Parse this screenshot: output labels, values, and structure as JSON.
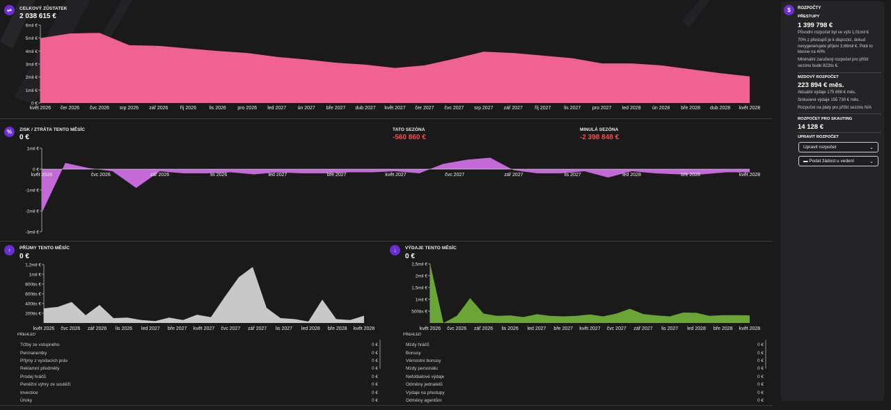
{
  "balance": {
    "title": "CELKOVÝ ZŮSTATEK",
    "value": "2 038 615 €",
    "y_ticks": [
      "6mil €",
      "5mil €",
      "4mil €",
      "3mil €",
      "2mil €",
      "1mil €",
      "0 €"
    ],
    "x_ticks": [
      "květ 2026",
      "čer 2026",
      "čvc 2026",
      "srp 2026",
      "zář 2026",
      "říj 2026",
      "lis 2026",
      "pro 2026",
      "led 2027",
      "ún 2027",
      "bře 2027",
      "dub 2027",
      "květ 2027",
      "čer 2027",
      "čvc 2027",
      "srp 2027",
      "zář 2027",
      "říj 2027",
      "lis 2027",
      "pro 2027",
      "led 2028",
      "ún 2028",
      "bře 2028",
      "dub 2028",
      "květ 2028"
    ],
    "color": "#f06292",
    "chart_data": {
      "type": "area",
      "ylim": [
        0,
        6000000
      ],
      "values": [
        5000000,
        5350000,
        5400000,
        4450000,
        4400000,
        4200000,
        4000000,
        3850000,
        3550000,
        3350000,
        3100000,
        2950000,
        2700000,
        2900000,
        3400000,
        3950000,
        3850000,
        3650000,
        3450000,
        3050000,
        3050000,
        2900000,
        2600000,
        2300000,
        2050000
      ]
    }
  },
  "profit": {
    "title": "ZISK / ZTRÁTA TENTO MĚSÍC",
    "value": "0 €",
    "season_title": "TATO SEZÓNA",
    "season_value": "-560 860 €",
    "last_title": "MINULÁ SEZÓNA",
    "last_value": "-2 398 848 €",
    "y_ticks": [
      "1mil €",
      "0 €",
      "-1mil €",
      "-2mil €",
      "-3mil €"
    ],
    "x_ticks": [
      "květ 2026",
      "čvc 2026",
      "zář 2026",
      "lis 2026",
      "led 2027",
      "bře 2027",
      "květ 2027",
      "čvc 2027",
      "zář 2027",
      "lis 2027",
      "led 2028",
      "bře 2028",
      "květ 2028"
    ],
    "color": "#c46ad8",
    "chart_data": {
      "type": "area",
      "ylim": [
        -3000000,
        1000000
      ],
      "values": [
        -2100000,
        300000,
        50000,
        -100000,
        -900000,
        -100000,
        -200000,
        -200000,
        -150000,
        -250000,
        -150000,
        -200000,
        -200000,
        -150000,
        -150000,
        -100000,
        -200000,
        250000,
        450000,
        550000,
        -50000,
        -200000,
        -200000,
        -100000,
        -400000,
        -100000,
        -200000,
        -250000,
        -250000,
        -150000,
        -150000
      ]
    }
  },
  "income": {
    "title": "PŘÍJMY TENTO MĚSÍC",
    "value": "0 €",
    "y_ticks": [
      "1,2mil €",
      "1mil €",
      "800tis €",
      "600tis €",
      "400tis €",
      "200tis €"
    ],
    "x_ticks": [
      "květ 2026",
      "čvc 2026",
      "zář 2026",
      "lis 2026",
      "led 2027",
      "bře 2027",
      "květ 2027",
      "čvc 2027",
      "zář 2027",
      "lis 2027",
      "led 2028",
      "bře 2028",
      "květ 2028"
    ],
    "color": "#c8c8c8",
    "chart_data": {
      "type": "area",
      "ylim": [
        0,
        1200000
      ],
      "values": [
        300000,
        330000,
        430000,
        160000,
        370000,
        100000,
        110000,
        60000,
        40000,
        110000,
        60000,
        170000,
        120000,
        540000,
        940000,
        1150000,
        310000,
        100000,
        80000,
        30000,
        480000,
        80000,
        60000,
        150000
      ]
    },
    "list_header": "PŘEHLED",
    "rows": [
      {
        "label": "Tržby ze vstupného",
        "value": "0 €"
      },
      {
        "label": "Permanentky",
        "value": "0 €"
      },
      {
        "label": "Příjmy z vysílacích práv",
        "value": "0 €"
      },
      {
        "label": "Reklamní předměty",
        "value": "0 €"
      },
      {
        "label": "Prodej hráčů",
        "value": "0 €"
      },
      {
        "label": "Peněžní výhry ze soutěží",
        "value": "0 €"
      },
      {
        "label": "Investice",
        "value": "0 €"
      },
      {
        "label": "Úroky",
        "value": "0 €"
      }
    ]
  },
  "expenses": {
    "title": "VÝDAJE TENTO MĚSÍC",
    "value": "0 €",
    "y_ticks": [
      "2,5mil €",
      "2mil €",
      "1,5mil €",
      "1mil €",
      "500tis €"
    ],
    "x_ticks": [
      "květ 2026",
      "čvc 2026",
      "zář 2026",
      "lis 2026",
      "led 2027",
      "bře 2027",
      "květ 2027",
      "čvc 2027",
      "zář 2027",
      "lis 2027",
      "led 2028",
      "bře 2028",
      "květ 2028"
    ],
    "color": "#6aa535",
    "chart_data": {
      "type": "area",
      "ylim": [
        0,
        2500000
      ],
      "values": [
        2500000,
        0,
        300000,
        1050000,
        400000,
        300000,
        320000,
        250000,
        370000,
        300000,
        280000,
        300000,
        360000,
        280000,
        400000,
        600000,
        380000,
        320000,
        280000,
        440000,
        430000,
        300000,
        330000,
        330000,
        320000
      ]
    },
    "list_header": "PŘEHLED",
    "rows": [
      {
        "label": "Mzdy hráčů",
        "value": "0 €"
      },
      {
        "label": "Bonusy",
        "value": "0 €"
      },
      {
        "label": "Věrnostní bonusy",
        "value": "0 €"
      },
      {
        "label": "Mzdy personálu",
        "value": "0 €"
      },
      {
        "label": "Nefotbalové výdaje",
        "value": "0 €"
      },
      {
        "label": "Odměny jednatelů",
        "value": "0 €"
      },
      {
        "label": "Výdaje na přestupy",
        "value": "0 €"
      },
      {
        "label": "Odměny agentům",
        "value": "0 €"
      }
    ]
  },
  "sidebar": {
    "title": "ROZPOČTY",
    "transfers_title": "PŘESTUPY",
    "transfers_value": "1 399 798 €",
    "transfers_note1": "Původní rozpočet byl ve výši 1,01mil €",
    "transfers_note2": "70% z přestupů je k dispozici, dokud nevygenerujete příjem 3,66mil €. Poté to klesne na 40%",
    "transfers_note3": "Minimální zaručený rozpočet pro příští sezónu bude 822tis €.",
    "wage_title": "MZDOVÝ ROZPOČET",
    "wage_value": "223 894 € měs.",
    "wage_note1": "Aktuální výdaje 175 868 € měs.",
    "wage_note2": "Smluvené výdaje 155 730 € měs.",
    "wage_note3": "Rozpočet na platy pro příští sezónu N/A",
    "scouting_title": "ROZPOČET PRO SKAUTING",
    "scouting_value": "14 128 €",
    "adjust_title": "UPRAVIT ROZPOČET",
    "adjust_button": "Upravit rozpočet",
    "request_button": "Podat žádost u vedení"
  }
}
